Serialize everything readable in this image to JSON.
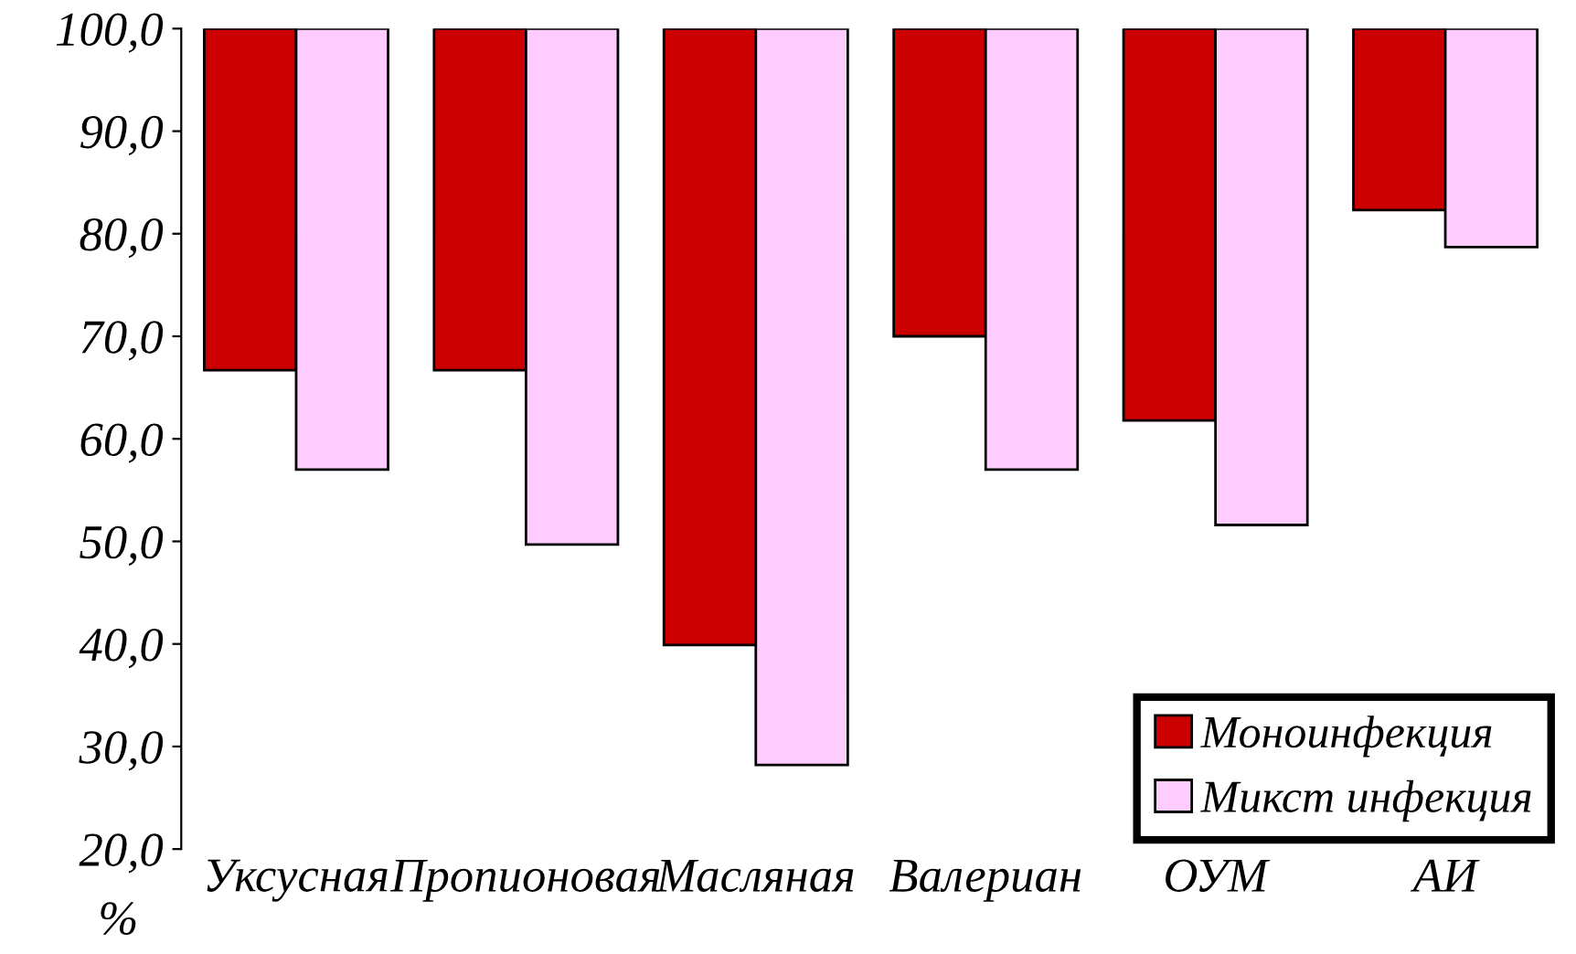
{
  "chart_data": {
    "type": "bar",
    "ylabel": "%",
    "categories": [
      "Уксусная",
      "Пропионовая",
      "Масляная",
      "Валериан",
      "ОУМ",
      "АИ"
    ],
    "series": [
      {
        "name": "Моноинфекция",
        "color": "#cc0000",
        "base": [
          100,
          100,
          100,
          100,
          100,
          100
        ],
        "values": [
          -33.3,
          -33.3,
          -60.1,
          -30.0,
          -38.2,
          -17.7
        ]
      },
      {
        "name": "Микст инфекция",
        "color": "#ffccff",
        "base": [
          100,
          100,
          100,
          100,
          100,
          100
        ],
        "values": [
          -43.0,
          -50.3,
          -71.8,
          -43.0,
          -48.4,
          -21.3
        ]
      }
    ],
    "ylim": [
      20,
      100
    ],
    "yticks": [
      {
        "value": 20,
        "label": "20,0"
      },
      {
        "value": 30,
        "label": "30,0"
      },
      {
        "value": 40,
        "label": "40,0"
      },
      {
        "value": 50,
        "label": "50,0"
      },
      {
        "value": 60,
        "label": "60,0"
      },
      {
        "value": 70,
        "label": "70,0"
      },
      {
        "value": 80,
        "label": "80,0"
      },
      {
        "value": 90,
        "label": "90,0"
      },
      {
        "value": 100,
        "label": "100,0"
      }
    ],
    "grid": false,
    "legend": "bottom right"
  }
}
